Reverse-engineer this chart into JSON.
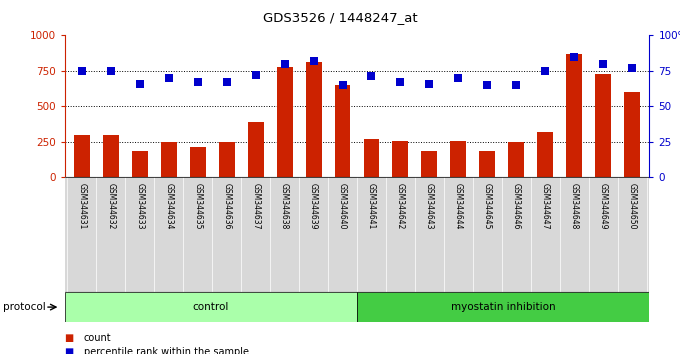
{
  "title": "GDS3526 / 1448247_at",
  "samples": [
    "GSM344631",
    "GSM344632",
    "GSM344633",
    "GSM344634",
    "GSM344635",
    "GSM344636",
    "GSM344637",
    "GSM344638",
    "GSM344639",
    "GSM344640",
    "GSM344641",
    "GSM344642",
    "GSM344643",
    "GSM344644",
    "GSM344645",
    "GSM344646",
    "GSM344647",
    "GSM344648",
    "GSM344649",
    "GSM344650"
  ],
  "counts": [
    300,
    300,
    185,
    250,
    210,
    245,
    390,
    775,
    810,
    650,
    270,
    255,
    185,
    255,
    185,
    250,
    320,
    870,
    730,
    600
  ],
  "percentiles": [
    75,
    75,
    66,
    70,
    67,
    67,
    72,
    80,
    82,
    65,
    71,
    67,
    66,
    70,
    65,
    65,
    75,
    85,
    80,
    77
  ],
  "groups": [
    {
      "name": "control",
      "start": 0,
      "end": 10,
      "color": "#aaffaa"
    },
    {
      "name": "myostatin inhibition",
      "start": 10,
      "end": 20,
      "color": "#44cc44"
    }
  ],
  "bar_color": "#cc2200",
  "dot_color": "#0000cc",
  "left_ylim": [
    0,
    1000
  ],
  "right_ylim": [
    0,
    100
  ],
  "left_yticks": [
    0,
    250,
    500,
    750,
    1000
  ],
  "right_yticks": [
    0,
    25,
    50,
    75,
    100
  ],
  "bg_color": "#ffffff",
  "plot_bg": "#ffffff",
  "grid_lines": [
    250,
    500,
    750
  ],
  "label_bg": "#d8d8d8",
  "legend_count_label": "count",
  "legend_pct_label": "percentile rank within the sample",
  "protocol_label": "protocol"
}
